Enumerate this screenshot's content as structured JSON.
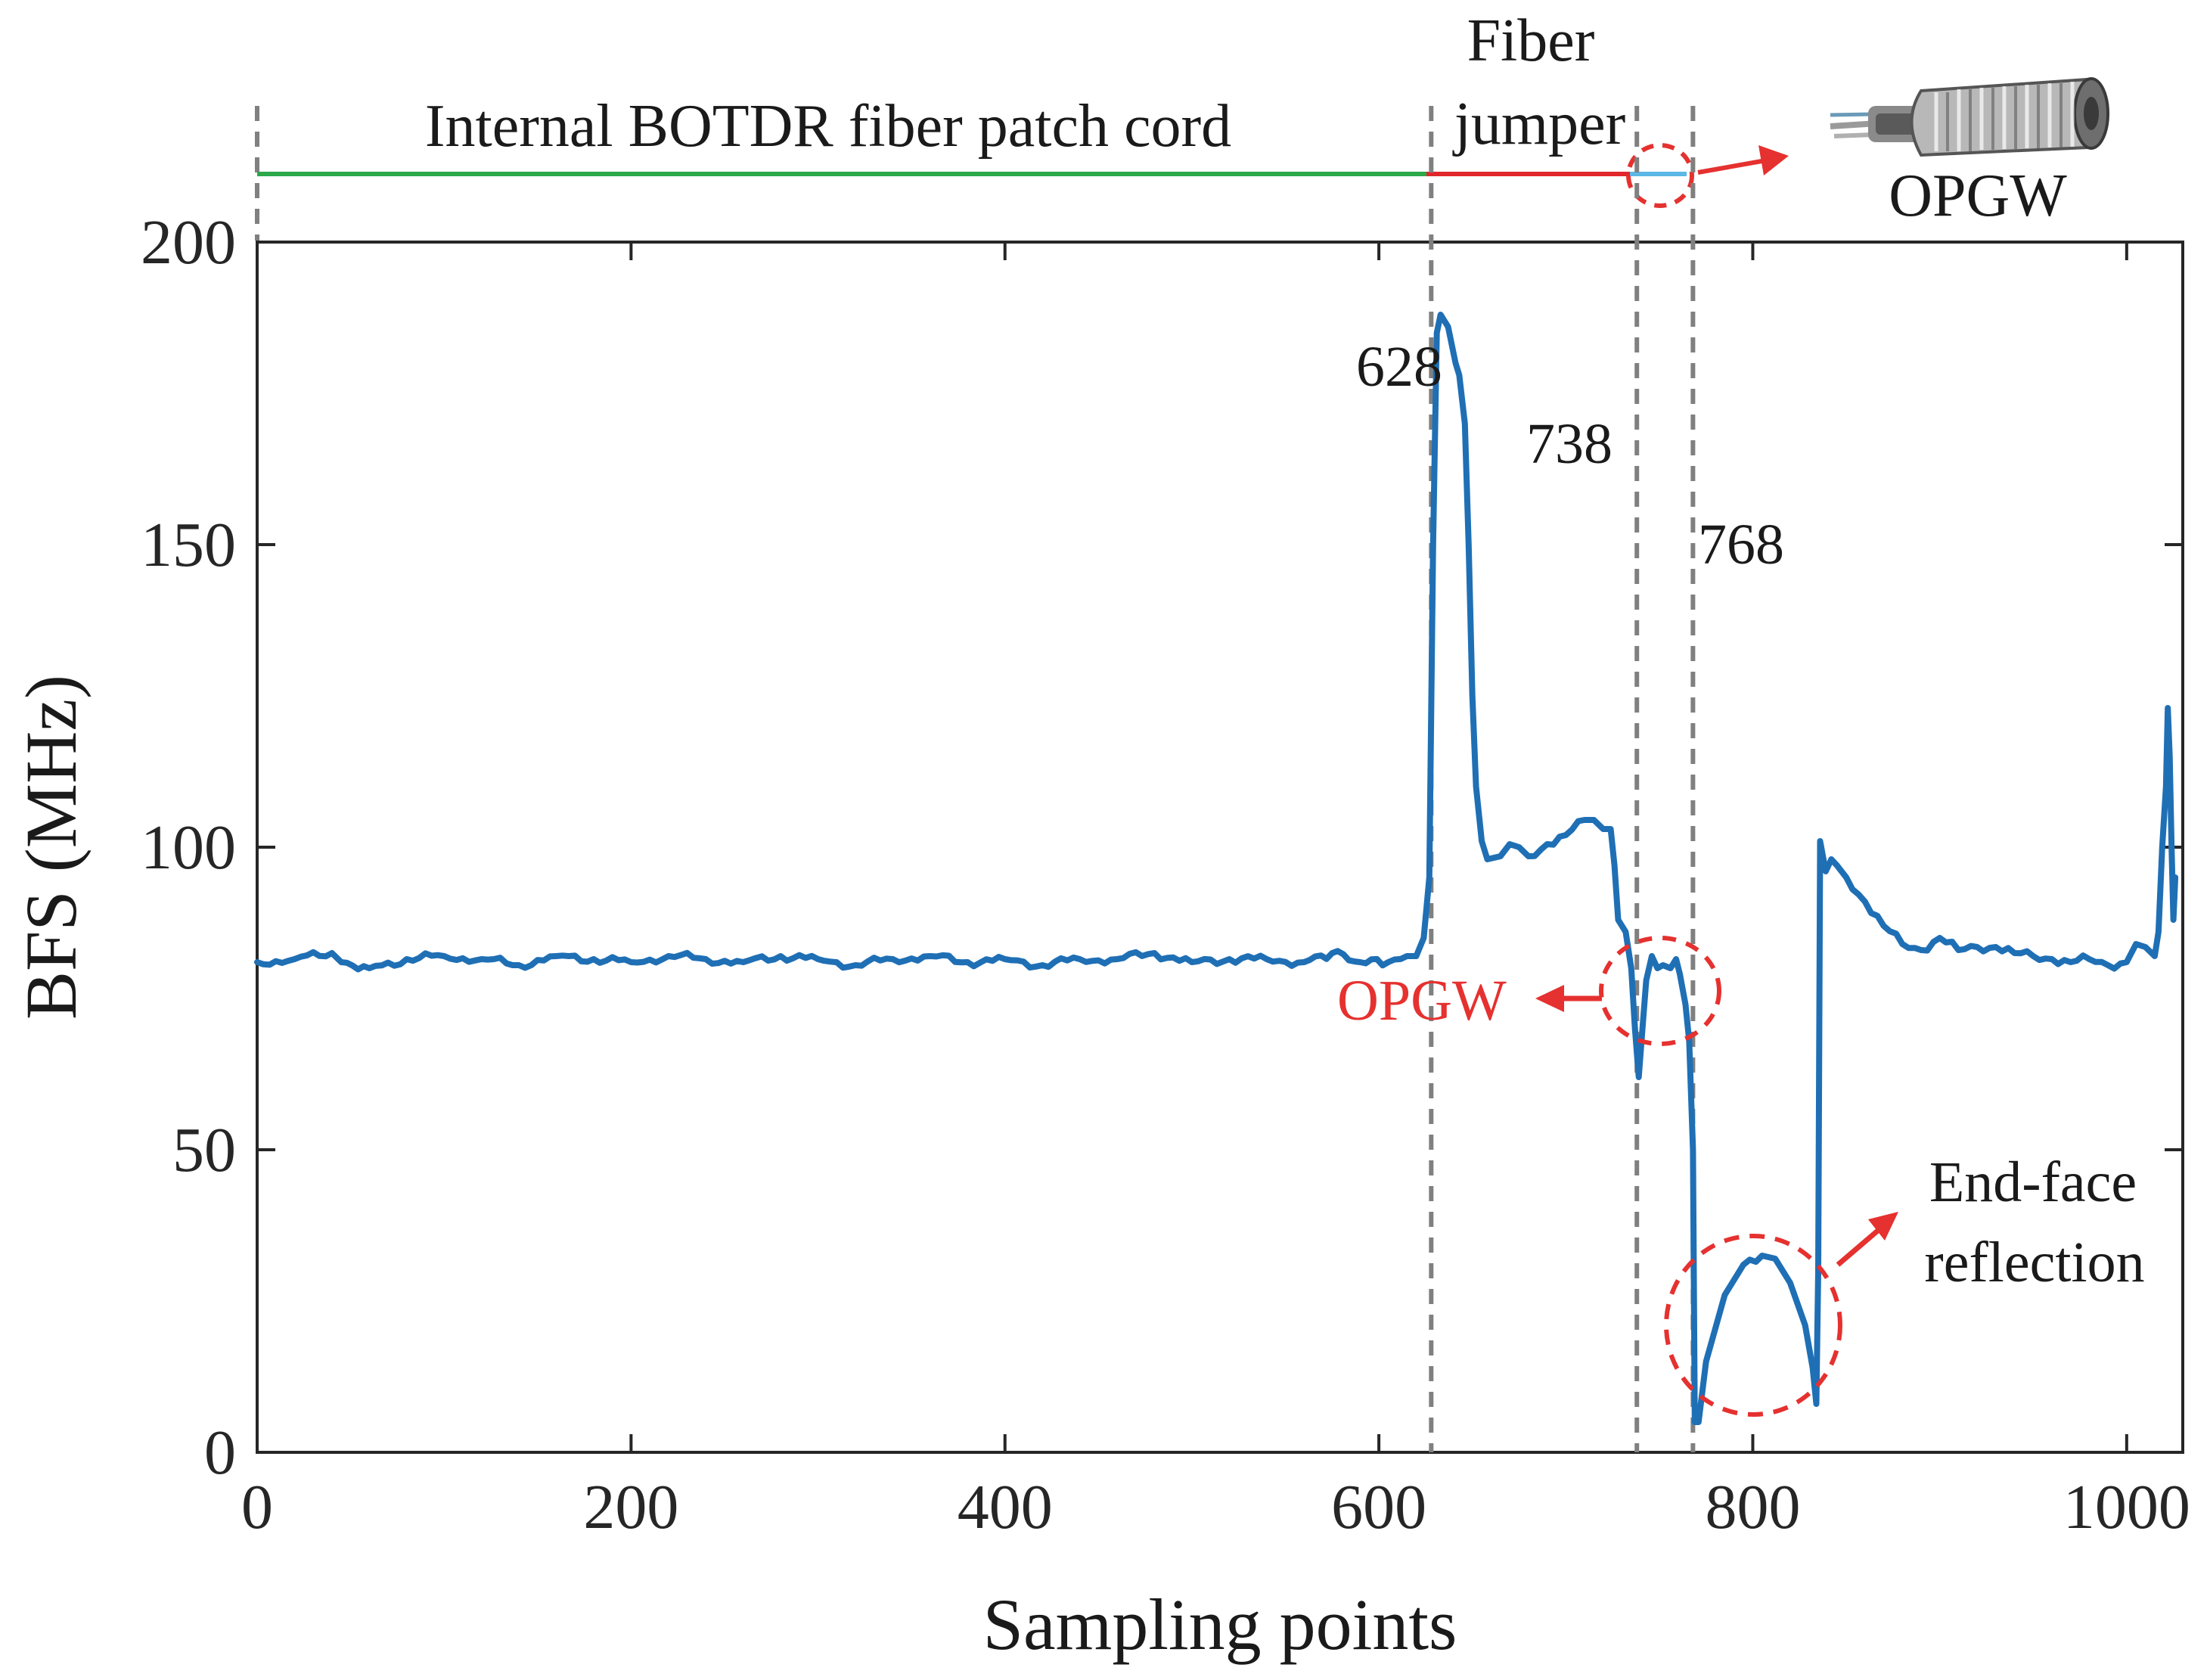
{
  "chart_data": {
    "type": "line",
    "title": "",
    "xlabel": "Sampling points",
    "ylabel": "BFS (MHz)",
    "xlim": [
      0,
      1030
    ],
    "ylim": [
      0,
      200
    ],
    "xticks": [
      0,
      200,
      400,
      600,
      800,
      1000
    ],
    "xtick_labels": [
      "0",
      "200",
      "400",
      "600",
      "800",
      "1000"
    ],
    "yticks": [
      0,
      50,
      100,
      150,
      200
    ],
    "ytick_labels": [
      "0",
      "50",
      "100",
      "150",
      "200"
    ],
    "grid": false,
    "line_color": "#1f6fb5",
    "series": [
      {
        "name": "BFS",
        "points": [
          [
            0,
            81
          ],
          [
            20,
            81.5
          ],
          [
            40,
            82.5
          ],
          [
            45,
            81
          ],
          [
            60,
            80
          ],
          [
            80,
            81.5
          ],
          [
            100,
            82
          ],
          [
            120,
            81.5
          ],
          [
            140,
            80.5
          ],
          [
            160,
            82
          ],
          [
            180,
            81.5
          ],
          [
            200,
            81
          ],
          [
            220,
            82
          ],
          [
            240,
            81.5
          ],
          [
            260,
            81
          ],
          [
            280,
            82
          ],
          [
            300,
            81.5
          ],
          [
            320,
            80.5
          ],
          [
            340,
            81.5
          ],
          [
            360,
            82
          ],
          [
            380,
            81
          ],
          [
            400,
            81.5
          ],
          [
            420,
            80.5
          ],
          [
            440,
            81.5
          ],
          [
            460,
            81.5
          ],
          [
            480,
            82.5
          ],
          [
            500,
            81
          ],
          [
            520,
            81.5
          ],
          [
            540,
            81.5
          ],
          [
            560,
            81
          ],
          [
            575,
            82.5
          ],
          [
            590,
            81
          ],
          [
            605,
            81
          ],
          [
            615,
            82
          ],
          [
            620,
            82
          ],
          [
            624,
            85
          ],
          [
            627,
            95
          ],
          [
            629,
            150
          ],
          [
            631,
            185
          ],
          [
            633,
            188
          ],
          [
            637,
            186
          ],
          [
            641,
            180
          ],
          [
            643,
            178
          ],
          [
            646,
            170
          ],
          [
            648,
            150
          ],
          [
            650,
            125
          ],
          [
            652,
            110
          ],
          [
            655,
            101
          ],
          [
            658,
            98
          ],
          [
            665,
            98.5
          ],
          [
            670,
            100.5
          ],
          [
            675,
            100
          ],
          [
            680,
            98.5
          ],
          [
            690,
            100.5
          ],
          [
            700,
            102
          ],
          [
            710,
            104.5
          ],
          [
            715,
            104.5
          ],
          [
            720,
            103
          ],
          [
            724,
            103
          ],
          [
            726,
            97
          ],
          [
            728,
            88
          ],
          [
            732,
            86
          ],
          [
            735,
            80
          ],
          [
            737,
            70
          ],
          [
            739,
            62
          ],
          [
            741,
            70
          ],
          [
            743,
            78
          ],
          [
            746,
            82
          ],
          [
            749,
            80
          ],
          [
            752,
            80.5
          ],
          [
            756,
            80
          ],
          [
            759,
            81.5
          ],
          [
            761,
            79
          ],
          [
            764,
            74
          ],
          [
            766,
            68
          ],
          [
            768,
            50
          ],
          [
            769,
            5
          ],
          [
            771,
            5
          ],
          [
            775,
            15
          ],
          [
            785,
            26
          ],
          [
            795,
            31
          ],
          [
            805,
            32.5
          ],
          [
            812,
            32
          ],
          [
            820,
            28
          ],
          [
            828,
            21
          ],
          [
            832,
            14
          ],
          [
            834,
            8
          ],
          [
            835,
            30
          ],
          [
            836,
            101
          ],
          [
            839,
            96
          ],
          [
            842,
            98
          ],
          [
            845,
            97
          ],
          [
            850,
            95
          ],
          [
            860,
            91
          ],
          [
            870,
            87
          ],
          [
            880,
            84
          ],
          [
            890,
            83
          ],
          [
            900,
            85
          ],
          [
            910,
            83
          ],
          [
            920,
            83.5
          ],
          [
            930,
            83.5
          ],
          [
            940,
            82.5
          ],
          [
            950,
            82
          ],
          [
            960,
            81.5
          ],
          [
            970,
            81
          ],
          [
            980,
            81.5
          ],
          [
            990,
            80.5
          ],
          [
            1000,
            81
          ],
          [
            1005,
            84
          ],
          [
            1010,
            83.5
          ],
          [
            1015,
            82
          ],
          [
            1017,
            86
          ],
          [
            1019,
            100
          ],
          [
            1021,
            110
          ],
          [
            1022,
            123
          ],
          [
            1023,
            115
          ],
          [
            1024,
            100
          ],
          [
            1025,
            88
          ],
          [
            1026,
            95
          ]
        ]
      }
    ],
    "annotations": {
      "boundaries": [
        {
          "x": 628,
          "label": "628"
        },
        {
          "x": 738,
          "label": "738"
        },
        {
          "x": 768,
          "label": "768"
        }
      ],
      "segment_patch_cord": "Internal BOTDR fiber patch cord",
      "segment_jumper_line1": "Fiber",
      "segment_jumper_line2": "jumper",
      "opgw_top_label": "OPGW",
      "opgw_callout": "OPGW",
      "reflection_line1": "End-face",
      "reflection_line2": "reflection",
      "segment_colors": {
        "patch_cord": "#2aa84a",
        "jumper": "#e0262b",
        "opgw": "#5bb8e6"
      },
      "callout_color": "#e5312f"
    }
  }
}
